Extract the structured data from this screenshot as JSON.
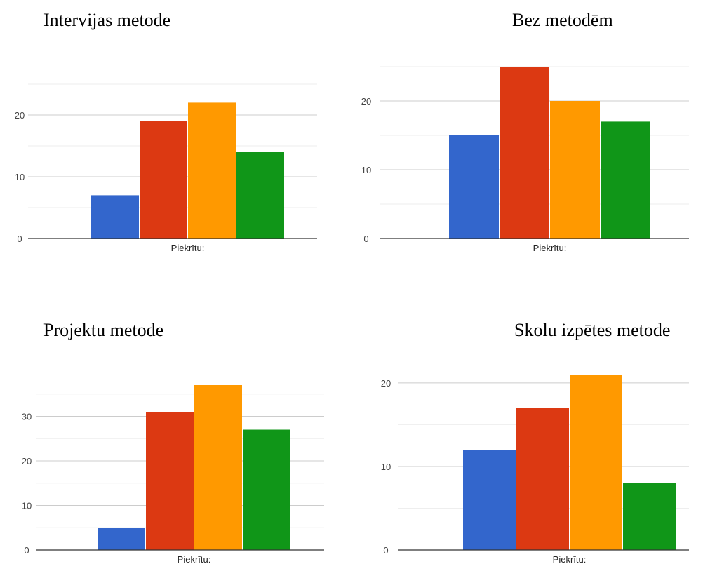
{
  "colors": [
    "#3366cc",
    "#dc3912",
    "#ff9900",
    "#109618"
  ],
  "chart_data": [
    {
      "type": "bar",
      "title": "Intervijas metode",
      "categories": [
        "Piekrītu:"
      ],
      "series": [
        {
          "values": [
            7
          ]
        },
        {
          "values": [
            19
          ]
        },
        {
          "values": [
            22
          ]
        },
        {
          "values": [
            14
          ]
        }
      ],
      "yticks": [
        0,
        10,
        20
      ],
      "ylim": [
        0,
        25
      ],
      "grid": true
    },
    {
      "type": "bar",
      "title": "Bez metodēm",
      "categories": [
        "Piekrītu:"
      ],
      "series": [
        {
          "values": [
            15
          ]
        },
        {
          "values": [
            25
          ]
        },
        {
          "values": [
            20
          ]
        },
        {
          "values": [
            17
          ]
        }
      ],
      "yticks": [
        0,
        10,
        20
      ],
      "ylim": [
        0,
        25
      ],
      "grid": true
    },
    {
      "type": "bar",
      "title": "Projektu metode",
      "categories": [
        "Piekrītu:"
      ],
      "series": [
        {
          "values": [
            5
          ]
        },
        {
          "values": [
            31
          ]
        },
        {
          "values": [
            37
          ]
        },
        {
          "values": [
            27
          ]
        }
      ],
      "yticks": [
        0,
        10,
        20,
        30
      ],
      "ylim": [
        0,
        37
      ],
      "grid": true
    },
    {
      "type": "bar",
      "title": "Skolu izpētes metode",
      "categories": [
        "Piekrītu:"
      ],
      "series": [
        {
          "values": [
            12
          ]
        },
        {
          "values": [
            17
          ]
        },
        {
          "values": [
            21
          ]
        },
        {
          "values": [
            8
          ]
        }
      ],
      "yticks": [
        0,
        10,
        20
      ],
      "ylim": [
        0,
        21
      ],
      "grid": true
    }
  ]
}
